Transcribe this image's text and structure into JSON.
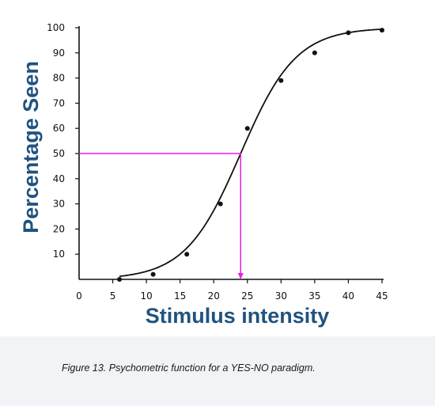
{
  "chart_data": {
    "type": "scatter",
    "xlabel": "Stimulus intensity",
    "ylabel": "Percentage Seen",
    "xlim": [
      0,
      45
    ],
    "ylim": [
      0,
      100
    ],
    "x_ticks": [
      "0",
      "5",
      "10",
      "15",
      "20",
      "25",
      "30",
      "35",
      "40",
      "45"
    ],
    "y_ticks": [
      "10",
      "20",
      "30",
      "40",
      "50",
      "60",
      "70",
      "80",
      "90",
      "100"
    ],
    "grid": false,
    "series": [
      {
        "x": [
          6,
          11,
          16,
          21,
          25,
          30,
          35,
          40,
          45
        ],
        "y": [
          0,
          2,
          10,
          30,
          60,
          79,
          90,
          98,
          99
        ]
      }
    ],
    "fitted_curve": "sigmoid",
    "threshold": {
      "x": 24,
      "y": 50,
      "color": "#e81de8"
    },
    "colors": {
      "data": "#111111",
      "axis_title": "#21537f",
      "threshold_line": "#e81de8"
    }
  },
  "caption": "Figure 13. Psychometric function for a YES-NO paradigm."
}
